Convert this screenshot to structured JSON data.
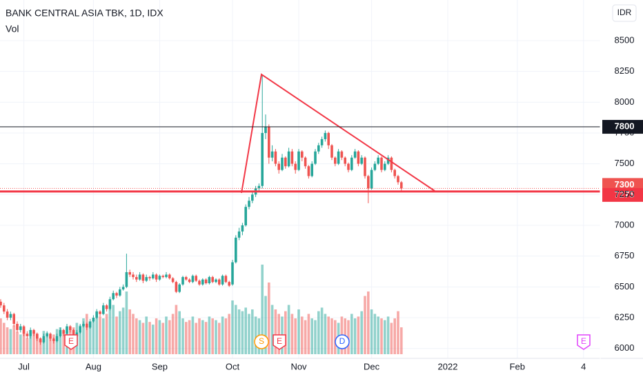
{
  "chart_data": {
    "type": "candlestick",
    "title": "BANK CENTRAL ASIA TBK, 1D, IDX",
    "volume_label": "Vol",
    "currency": "IDR",
    "up_color": "#26a69a",
    "down_color": "#ef5350",
    "ylim": [
      5920,
      8830
    ],
    "yticks": [
      6000,
      6250,
      6500,
      6750,
      7000,
      7250,
      7500,
      7750,
      8000,
      8250,
      8500
    ],
    "volume_lim": [
      0,
      100
    ],
    "grid": true,
    "price_lines": [
      {
        "value": 7800,
        "color": "#131722",
        "style": "solid"
      },
      {
        "value": 7300,
        "color": "#ef5350",
        "style": "dotted"
      },
      {
        "value": 7275,
        "color": "#f23645",
        "style": "thick"
      }
    ],
    "events": [
      {
        "label": "E",
        "color": "#f23645"
      },
      {
        "label": "S",
        "color": "#ff9800"
      },
      {
        "label": "E",
        "color": "#f23645"
      },
      {
        "label": "D",
        "color": "#2962ff"
      },
      {
        "label": "E",
        "color": "#e040fb"
      }
    ],
    "categories": [
      null,
      null,
      null,
      null,
      null,
      null,
      null,
      "Jul",
      null,
      null,
      null,
      null,
      null,
      null,
      null,
      null,
      null,
      null,
      null,
      null,
      null,
      null,
      null,
      null,
      null,
      null,
      null,
      null,
      "Aug",
      null,
      null,
      null,
      null,
      null,
      null,
      null,
      null,
      null,
      null,
      null,
      null,
      null,
      null,
      null,
      null,
      null,
      null,
      null,
      "Sep",
      null,
      null,
      null,
      null,
      null,
      null,
      null,
      null,
      null,
      null,
      null,
      null,
      null,
      null,
      null,
      null,
      null,
      null,
      null,
      null,
      null,
      "Oct",
      null,
      null,
      null,
      null,
      null,
      null,
      null,
      null,
      null,
      null,
      null,
      null,
      null,
      null,
      null,
      null,
      null,
      null,
      null,
      "Nov",
      null,
      null,
      null,
      null,
      null,
      null,
      null,
      null,
      null,
      null,
      null,
      null,
      null,
      null,
      null,
      null,
      null,
      null,
      null,
      null,
      null,
      "Dec",
      null,
      null,
      null,
      null,
      null,
      null,
      null,
      null,
      null,
      null,
      null,
      null,
      null,
      null,
      null,
      null,
      null,
      null,
      null,
      null,
      null,
      null,
      "2022",
      null,
      null,
      null,
      null,
      null,
      null,
      null,
      null,
      null,
      null,
      null,
      null,
      null,
      null,
      null,
      null,
      null,
      null,
      null,
      null,
      "Feb",
      null,
      null,
      null,
      null,
      null,
      null,
      null,
      null,
      null,
      null,
      null,
      null,
      null,
      null,
      null,
      null,
      null,
      null,
      null,
      "4",
      null,
      null,
      null,
      null
    ],
    "ohlc": [
      [
        6380,
        6400,
        6330,
        6350
      ],
      [
        6350,
        6370,
        6280,
        6300
      ],
      [
        6300,
        6320,
        6230,
        6250
      ],
      [
        6250,
        6300,
        6230,
        6280
      ],
      [
        6280,
        6290,
        6180,
        6200
      ],
      [
        6200,
        6220,
        6130,
        6150
      ],
      [
        6150,
        6200,
        6130,
        6180
      ],
      [
        6180,
        6190,
        6100,
        6120
      ],
      [
        6120,
        6140,
        6080,
        6100
      ],
      [
        6100,
        6170,
        6080,
        6150
      ],
      [
        6150,
        6160,
        6100,
        6120
      ],
      [
        6120,
        6130,
        6060,
        6080
      ],
      [
        6080,
        6090,
        6030,
        6050
      ],
      [
        6050,
        6120,
        6040,
        6100
      ],
      [
        6100,
        6140,
        6090,
        6120
      ],
      [
        6120,
        6130,
        6060,
        6080
      ],
      [
        6080,
        6090,
        6040,
        6060
      ],
      [
        6060,
        6120,
        6050,
        6100
      ],
      [
        6100,
        6170,
        6090,
        6150
      ],
      [
        6150,
        6160,
        6100,
        6120
      ],
      [
        6120,
        6200,
        6110,
        6180
      ],
      [
        6180,
        6190,
        6130,
        6150
      ],
      [
        6150,
        6160,
        6080,
        6100
      ],
      [
        6100,
        6150,
        6090,
        6130
      ],
      [
        6130,
        6200,
        6120,
        6180
      ],
      [
        6180,
        6220,
        6170,
        6200
      ],
      [
        6200,
        6210,
        6150,
        6170
      ],
      [
        6170,
        6240,
        6160,
        6220
      ],
      [
        6220,
        6270,
        6210,
        6250
      ],
      [
        6250,
        6320,
        6240,
        6300
      ],
      [
        6300,
        6310,
        6260,
        6280
      ],
      [
        6280,
        6370,
        6270,
        6350
      ],
      [
        6350,
        6360,
        6300,
        6320
      ],
      [
        6320,
        6420,
        6310,
        6400
      ],
      [
        6400,
        6470,
        6390,
        6450
      ],
      [
        6450,
        6460,
        6410,
        6430
      ],
      [
        6430,
        6500,
        6420,
        6480
      ],
      [
        6480,
        6520,
        6470,
        6500
      ],
      [
        6500,
        6770,
        6490,
        6620
      ],
      [
        6620,
        6640,
        6580,
        6600
      ],
      [
        6600,
        6620,
        6560,
        6580
      ],
      [
        6580,
        6600,
        6540,
        6560
      ],
      [
        6560,
        6620,
        6550,
        6600
      ],
      [
        6600,
        6610,
        6530,
        6550
      ],
      [
        6550,
        6600,
        6540,
        6580
      ],
      [
        6580,
        6590,
        6550,
        6570
      ],
      [
        6570,
        6620,
        6560,
        6600
      ],
      [
        6600,
        6610,
        6540,
        6560
      ],
      [
        6560,
        6600,
        6550,
        6590
      ],
      [
        6590,
        6600,
        6570,
        6580
      ],
      [
        6580,
        6620,
        6570,
        6600
      ],
      [
        6600,
        6610,
        6560,
        6570
      ],
      [
        6570,
        6580,
        6530,
        6540
      ],
      [
        6540,
        6550,
        6450,
        6460
      ],
      [
        6460,
        6530,
        6450,
        6520
      ],
      [
        6520,
        6590,
        6510,
        6580
      ],
      [
        6580,
        6590,
        6550,
        6560
      ],
      [
        6560,
        6570,
        6530,
        6540
      ],
      [
        6540,
        6600,
        6530,
        6590
      ],
      [
        6590,
        6600,
        6540,
        6550
      ],
      [
        6550,
        6560,
        6510,
        6520
      ],
      [
        6520,
        6570,
        6510,
        6560
      ],
      [
        6560,
        6570,
        6520,
        6530
      ],
      [
        6530,
        6590,
        6520,
        6580
      ],
      [
        6580,
        6590,
        6530,
        6540
      ],
      [
        6540,
        6570,
        6530,
        6560
      ],
      [
        6560,
        6570,
        6510,
        6520
      ],
      [
        6520,
        6600,
        6510,
        6590
      ],
      [
        6590,
        6600,
        6530,
        6540
      ],
      [
        6540,
        6550,
        6500,
        6510
      ],
      [
        6520,
        6720,
        6510,
        6700
      ],
      [
        6700,
        6920,
        6690,
        6900
      ],
      [
        6900,
        6980,
        6880,
        6950
      ],
      [
        6950,
        7020,
        6920,
        7000
      ],
      [
        7000,
        7170,
        6990,
        7150
      ],
      [
        7150,
        7230,
        7130,
        7200
      ],
      [
        7200,
        7270,
        7180,
        7250
      ],
      [
        7250,
        7320,
        7230,
        7300
      ],
      [
        7300,
        7340,
        7280,
        7320
      ],
      [
        7320,
        8220,
        7300,
        7750
      ],
      [
        7750,
        7900,
        7700,
        7800
      ],
      [
        7800,
        7820,
        7500,
        7550
      ],
      [
        7550,
        7650,
        7520,
        7600
      ],
      [
        7600,
        7620,
        7480,
        7500
      ],
      [
        7500,
        7520,
        7420,
        7450
      ],
      [
        7450,
        7580,
        7440,
        7550
      ],
      [
        7550,
        7560,
        7460,
        7480
      ],
      [
        7480,
        7630,
        7470,
        7600
      ],
      [
        7600,
        7620,
        7480,
        7500
      ],
      [
        7500,
        7520,
        7420,
        7450
      ],
      [
        7450,
        7620,
        7440,
        7600
      ],
      [
        7600,
        7610,
        7520,
        7550
      ],
      [
        7550,
        7560,
        7460,
        7480
      ],
      [
        7480,
        7490,
        7380,
        7400
      ],
      [
        7400,
        7520,
        7390,
        7500
      ],
      [
        7500,
        7620,
        7490,
        7600
      ],
      [
        7600,
        7670,
        7580,
        7650
      ],
      [
        7650,
        7720,
        7630,
        7700
      ],
      [
        7700,
        7770,
        7680,
        7750
      ],
      [
        7750,
        7760,
        7620,
        7650
      ],
      [
        7650,
        7660,
        7530,
        7550
      ],
      [
        7550,
        7560,
        7480,
        7500
      ],
      [
        7500,
        7620,
        7490,
        7600
      ],
      [
        7600,
        7610,
        7530,
        7550
      ],
      [
        7550,
        7560,
        7480,
        7500
      ],
      [
        7500,
        7510,
        7430,
        7450
      ],
      [
        7450,
        7570,
        7440,
        7550
      ],
      [
        7550,
        7620,
        7540,
        7600
      ],
      [
        7600,
        7610,
        7480,
        7500
      ],
      [
        7500,
        7570,
        7490,
        7550
      ],
      [
        7550,
        7560,
        7380,
        7400
      ],
      [
        7400,
        7410,
        7180,
        7300
      ],
      [
        7300,
        7470,
        7290,
        7450
      ],
      [
        7450,
        7520,
        7440,
        7500
      ],
      [
        7500,
        7570,
        7490,
        7550
      ],
      [
        7550,
        7560,
        7430,
        7450
      ],
      [
        7450,
        7520,
        7440,
        7500
      ],
      [
        7500,
        7570,
        7490,
        7550
      ],
      [
        7550,
        7560,
        7430,
        7450
      ],
      [
        7450,
        7460,
        7380,
        7400
      ],
      [
        7400,
        7410,
        7330,
        7350
      ],
      [
        7350,
        7360,
        7280,
        7300
      ],
      null,
      null,
      null,
      null,
      null,
      null,
      null,
      null,
      null,
      null,
      null,
      null,
      null,
      null,
      null,
      null,
      null,
      null,
      null,
      null,
      null,
      null,
      null,
      null,
      null,
      null,
      null,
      null,
      null,
      null,
      null,
      null,
      null,
      null,
      null,
      null,
      null,
      null,
      null,
      null,
      null,
      null,
      null,
      null,
      null,
      null,
      null,
      null,
      null,
      null,
      null,
      null,
      null,
      null,
      null,
      null,
      null,
      null,
      null
    ],
    "volume": [
      40,
      35,
      30,
      28,
      32,
      25,
      22,
      30,
      18,
      20,
      25,
      22,
      18,
      26,
      24,
      20,
      22,
      28,
      30,
      24,
      26,
      28,
      30,
      35,
      32,
      40,
      45,
      35,
      38,
      48,
      42,
      40,
      45,
      50,
      55,
      42,
      48,
      52,
      70,
      50,
      45,
      40,
      38,
      35,
      42,
      36,
      33,
      40,
      38,
      35,
      42,
      38,
      45,
      55,
      48,
      40,
      36,
      38,
      42,
      35,
      40,
      38,
      36,
      42,
      40,
      38,
      35,
      42,
      40,
      45,
      60,
      55,
      50,
      48,
      52,
      45,
      50,
      42,
      40,
      100,
      65,
      80,
      55,
      50,
      45,
      42,
      48,
      55,
      45,
      40,
      50,
      42,
      38,
      45,
      40,
      38,
      48,
      52,
      45,
      42,
      40,
      38,
      35,
      42,
      40,
      38,
      45,
      40,
      42,
      48,
      65,
      70,
      50,
      45,
      42,
      40,
      38,
      42,
      35,
      40,
      48,
      30,
      null,
      null,
      null,
      null,
      null,
      null,
      null,
      null,
      null,
      null,
      null,
      null,
      null,
      null,
      null,
      null,
      null,
      null,
      null,
      null,
      null,
      null,
      null,
      null,
      null,
      null,
      null,
      null,
      null,
      null,
      null,
      null,
      null,
      null,
      null,
      null,
      null,
      null,
      null,
      null,
      null,
      null,
      null,
      null,
      null,
      null,
      null,
      null,
      null,
      null,
      null,
      null,
      null,
      null,
      null,
      null,
      null,
      null,
      null
    ]
  }
}
